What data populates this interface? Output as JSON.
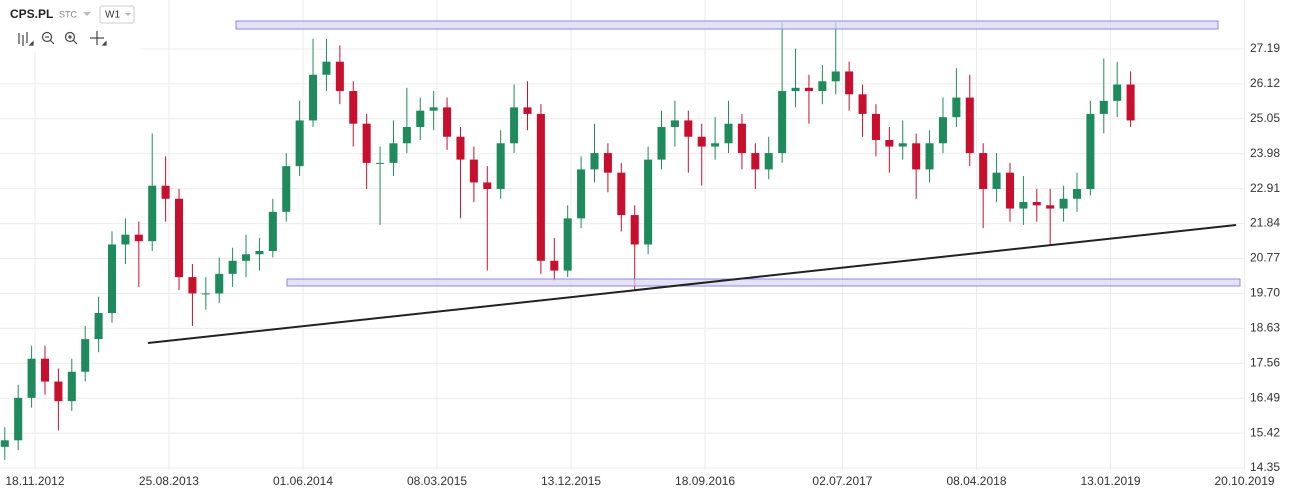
{
  "header": {
    "symbol": "CPS.PL",
    "exchange": "STC",
    "interval": "W1"
  },
  "chart_data": {
    "type": "candlestick",
    "x": [
      "16.09.2012",
      "14.10.2012",
      "11.11.2012",
      "09.12.2012",
      "06.01.2013",
      "03.02.2013",
      "03.03.2013",
      "31.03.2013",
      "28.04.2013",
      "26.05.2013",
      "23.06.2013",
      "21.07.2013",
      "18.08.2013",
      "15.09.2013",
      "13.10.2013",
      "10.11.2013",
      "08.12.2013",
      "05.01.2014",
      "02.02.2014",
      "02.03.2014",
      "30.03.2014",
      "27.04.2014",
      "25.05.2014",
      "22.06.2014",
      "20.07.2014",
      "17.08.2014",
      "14.09.2014",
      "12.10.2014",
      "09.11.2014",
      "07.12.2014",
      "04.01.2015",
      "01.02.2015",
      "01.03.2015",
      "29.03.2015",
      "26.04.2015",
      "24.05.2015",
      "21.06.2015",
      "19.07.2015",
      "16.08.2015",
      "13.09.2015",
      "11.10.2015",
      "08.11.2015",
      "06.12.2015",
      "03.01.2016",
      "31.01.2016",
      "28.02.2016",
      "27.03.2016",
      "24.04.2016",
      "22.05.2016",
      "19.06.2016",
      "17.07.2016",
      "14.08.2016",
      "11.09.2016",
      "09.10.2016",
      "06.11.2016",
      "04.12.2016",
      "01.01.2017",
      "29.01.2017",
      "26.02.2017",
      "26.03.2017",
      "23.04.2017",
      "21.05.2017",
      "18.06.2017",
      "16.07.2017",
      "13.08.2017",
      "10.09.2017",
      "08.10.2017",
      "05.11.2017",
      "03.12.2017",
      "31.12.2017",
      "28.01.2018",
      "25.02.2018",
      "25.03.2018",
      "22.04.2018",
      "20.05.2018",
      "17.06.2018",
      "15.07.2018",
      "12.08.2018",
      "09.09.2018",
      "07.10.2018",
      "04.11.2018",
      "02.12.2018",
      "30.12.2018",
      "27.01.2019",
      "24.02.2019"
    ],
    "open": [
      15.0,
      15.2,
      16.5,
      17.7,
      17.0,
      16.4,
      17.3,
      18.3,
      19.1,
      21.2,
      21.5,
      21.3,
      23.0,
      22.6,
      20.2,
      19.7,
      19.7,
      20.3,
      20.7,
      20.9,
      21.0,
      22.2,
      23.6,
      25.0,
      26.4,
      26.8,
      25.9,
      24.9,
      23.7,
      23.7,
      24.3,
      24.8,
      25.3,
      25.4,
      24.5,
      23.8,
      23.1,
      22.9,
      24.3,
      25.4,
      25.2,
      20.7,
      20.4,
      22.0,
      23.5,
      24.0,
      23.4,
      22.1,
      21.2,
      23.8,
      24.8,
      25.0,
      24.5,
      24.2,
      24.3,
      24.9,
      24.0,
      23.5,
      24.0,
      25.9,
      26.0,
      25.9,
      26.2,
      26.5,
      25.8,
      25.2,
      24.4,
      24.2,
      24.3,
      23.5,
      24.3,
      25.1,
      25.7,
      24.0,
      22.9,
      23.4,
      22.3,
      22.5,
      22.4,
      22.3,
      22.6,
      22.9,
      25.2,
      25.6,
      26.1
    ],
    "high": [
      15.6,
      16.9,
      18.1,
      18.1,
      17.4,
      17.7,
      18.7,
      19.6,
      21.6,
      22.0,
      21.9,
      24.6,
      23.9,
      22.9,
      20.6,
      20.2,
      20.8,
      21.1,
      21.5,
      21.4,
      22.6,
      24.0,
      25.6,
      27.5,
      27.5,
      27.3,
      26.2,
      25.2,
      24.2,
      25.0,
      26.0,
      25.7,
      25.9,
      25.7,
      24.8,
      24.2,
      23.6,
      24.7,
      26.1,
      26.2,
      25.5,
      21.4,
      22.4,
      23.9,
      24.9,
      24.3,
      23.7,
      22.4,
      24.2,
      25.3,
      25.6,
      25.3,
      24.9,
      25.1,
      25.6,
      25.2,
      24.3,
      24.5,
      28.0,
      27.2,
      26.4,
      26.7,
      28.0,
      26.8,
      26.1,
      25.5,
      24.8,
      25.0,
      24.6,
      24.7,
      25.7,
      26.6,
      26.4,
      24.3,
      24.0,
      23.7,
      23.3,
      22.9,
      22.9,
      23.0,
      23.4,
      25.6,
      26.9,
      26.8,
      26.5
    ],
    "low": [
      14.6,
      14.9,
      16.2,
      16.6,
      15.5,
      16.1,
      17.0,
      17.9,
      18.8,
      20.6,
      19.9,
      21.0,
      21.9,
      19.8,
      18.7,
      19.2,
      19.4,
      19.9,
      20.2,
      20.4,
      20.8,
      21.9,
      23.3,
      24.8,
      25.9,
      25.5,
      24.2,
      22.9,
      21.8,
      23.3,
      24.0,
      24.4,
      24.7,
      24.1,
      22.0,
      22.5,
      20.4,
      22.6,
      24.0,
      24.7,
      20.3,
      20.1,
      20.2,
      21.7,
      23.1,
      22.8,
      21.6,
      19.8,
      20.9,
      23.5,
      24.2,
      23.4,
      23.0,
      23.8,
      24.0,
      23.5,
      22.9,
      23.2,
      23.7,
      25.4,
      24.9,
      25.5,
      25.8,
      25.3,
      24.5,
      23.9,
      23.4,
      23.8,
      22.6,
      23.1,
      24.0,
      24.8,
      23.6,
      21.7,
      22.5,
      21.9,
      21.8,
      21.9,
      21.2,
      21.9,
      22.2,
      22.7,
      24.6,
      25.1,
      24.8
    ],
    "close": [
      15.2,
      16.5,
      17.7,
      17.0,
      16.4,
      17.3,
      18.3,
      19.1,
      21.2,
      21.5,
      21.3,
      23.0,
      22.6,
      20.2,
      19.7,
      19.7,
      20.3,
      20.7,
      20.9,
      21.0,
      22.2,
      23.6,
      25.0,
      26.4,
      26.8,
      25.9,
      24.9,
      23.7,
      23.7,
      24.3,
      24.8,
      25.3,
      25.4,
      24.5,
      23.8,
      23.1,
      22.9,
      24.3,
      25.4,
      25.2,
      20.7,
      20.4,
      22.0,
      23.5,
      24.0,
      23.4,
      22.1,
      21.2,
      23.8,
      24.8,
      25.0,
      24.5,
      24.2,
      24.3,
      24.9,
      24.0,
      23.5,
      24.0,
      25.9,
      26.0,
      25.9,
      26.2,
      26.5,
      25.8,
      25.2,
      24.4,
      24.2,
      24.3,
      23.5,
      24.3,
      25.1,
      25.7,
      24.0,
      22.9,
      23.4,
      22.3,
      22.5,
      22.4,
      22.3,
      22.6,
      22.9,
      25.2,
      25.6,
      26.1,
      25.0
    ],
    "up_color": "#1f8a5b",
    "down_color": "#c8102e",
    "xlim": [
      "06.09.2012",
      "21.10.2019"
    ],
    "xticks": [
      "18.11.2012",
      "25.08.2013",
      "01.06.2014",
      "08.03.2015",
      "13.12.2015",
      "18.09.2016",
      "02.07.2017",
      "08.04.2018",
      "13.01.2019",
      "20.10.2019"
    ],
    "ylim": [
      14.29,
      28.69
    ],
    "yticks": [
      27.19,
      26.12,
      25.05,
      23.98,
      22.91,
      21.84,
      20.77,
      {
        "value": 19.7,
        "label": "19.70"
      },
      18.63,
      17.56,
      16.49,
      15.42,
      14.35
    ],
    "grid": true
  }
}
